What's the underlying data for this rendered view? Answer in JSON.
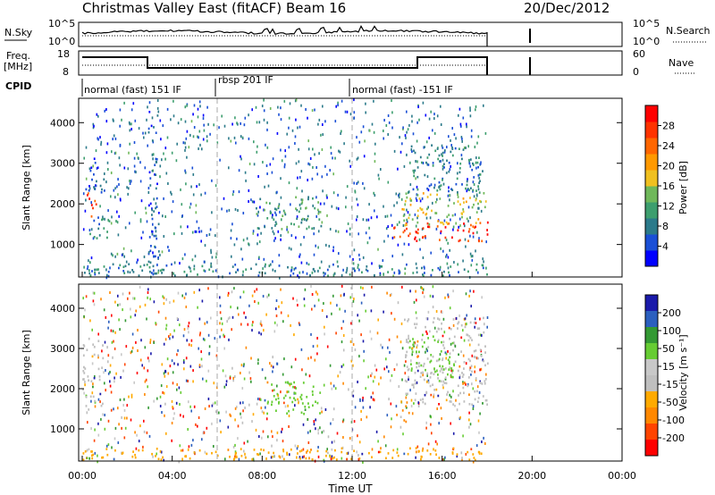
{
  "header": {
    "title": "Christmas Valley East (fitACF)",
    "beam": "Beam 16",
    "date": "20/Dec/2012"
  },
  "strips": {
    "nsky_label": "N.Sky",
    "nsearch_label": "N.Search",
    "nsky_ticks": [
      "10^5",
      "10^0"
    ],
    "nsearch_ticks": [
      "10^5",
      "10^0"
    ],
    "freq_label": [
      "Freq.",
      "[MHz]"
    ],
    "freq_ticks": [
      "18",
      "8"
    ],
    "nave_label": "Nave",
    "nave_ticks": [
      "60",
      "0"
    ],
    "cpid_label": "CPID",
    "cpid_segments": [
      {
        "label": "normal (fast) 151 IF",
        "start_h": 0,
        "end_h": 6
      },
      {
        "label": "rbsp 201 IF",
        "start_h": 6,
        "end_h": 12
      },
      {
        "label": "normal (fast) -151 IF",
        "start_h": 12,
        "end_h": 24
      }
    ]
  },
  "colors": {
    "power": [
      "#0000ff",
      "#1a4fd6",
      "#2b7a8a",
      "#3d9e6e",
      "#6fb85a",
      "#f0c020",
      "#ff9900",
      "#ff6600",
      "#ff3300",
      "#ff0000"
    ],
    "velocity": [
      "#ff0000",
      "#ff4400",
      "#ff8800",
      "#ffaa00",
      "#bfbfbf",
      "#c8c8c8",
      "#66cc33",
      "#339933",
      "#2b5fbf",
      "#1a1aaa"
    ]
  },
  "chart_data": [
    {
      "type": "heatmap",
      "name": "power",
      "ylabel": "Slant Range [km]",
      "xlim": [
        0,
        24
      ],
      "ylim": [
        200,
        4600
      ],
      "yticks": [
        "1000",
        "2000",
        "3000",
        "4000"
      ],
      "ytick_values": [
        1000,
        2000,
        3000,
        4000
      ],
      "colorbar_label": "Power [dB]",
      "colorbar_ticks": [
        "4",
        "8",
        "12",
        "16",
        "20",
        "24",
        "28"
      ],
      "colorbar_tick_values": [
        4,
        8,
        12,
        16,
        20,
        24,
        28
      ],
      "colorbar_range": [
        0,
        32
      ],
      "regions": [
        {
          "t": [
            0.1,
            0.6
          ],
          "r": [
            1700,
            2300
          ],
          "level": 27
        },
        {
          "t": [
            0.3,
            1.2
          ],
          "r": [
            1100,
            1700
          ],
          "level": 9
        },
        {
          "t": [
            0.1,
            1.0
          ],
          "r": [
            2300,
            3200
          ],
          "level": 5
        },
        {
          "t": [
            2.9,
            3.4
          ],
          "r": [
            300,
            4400
          ],
          "level": 6
        },
        {
          "t": [
            7.7,
            10.6
          ],
          "r": [
            1400,
            2200
          ],
          "level": 11
        },
        {
          "t": [
            13.8,
            18.0
          ],
          "r": [
            1100,
            1600
          ],
          "level": 27
        },
        {
          "t": [
            14.2,
            18.0
          ],
          "r": [
            1500,
            2300
          ],
          "level": 17
        },
        {
          "t": [
            14.6,
            17.8
          ],
          "r": [
            2300,
            3500
          ],
          "level": 8
        },
        {
          "t": [
            0.0,
            18.0
          ],
          "r": [
            250,
            550
          ],
          "level": 8
        }
      ]
    },
    {
      "type": "heatmap",
      "name": "velocity",
      "ylabel": "Slant Range [km]",
      "xlabel": "Time UT",
      "xlim": [
        0,
        24
      ],
      "xticks": [
        "00:00",
        "04:00",
        "08:00",
        "12:00",
        "16:00",
        "20:00",
        "00:00"
      ],
      "xtick_values": [
        0,
        4,
        8,
        12,
        16,
        20,
        24
      ],
      "ylim": [
        200,
        4600
      ],
      "yticks": [
        "1000",
        "2000",
        "3000",
        "4000"
      ],
      "ytick_values": [
        1000,
        2000,
        3000,
        4000
      ],
      "colorbar_label": "Velocity [m s⁻¹]",
      "colorbar_ticks": [
        "-200",
        "-100",
        "-50",
        "-15",
        "15",
        "50",
        "100",
        "200"
      ],
      "regions": [
        {
          "t": [
            0.0,
            0.9
          ],
          "r": [
            1500,
            3300
          ],
          "level": "-15..15"
        },
        {
          "t": [
            7.7,
            10.6
          ],
          "r": [
            1400,
            2200
          ],
          "level": "15..50"
        },
        {
          "t": [
            13.9,
            14.5
          ],
          "r": [
            1100,
            1700
          ],
          "level": "-100..-50"
        },
        {
          "t": [
            14.3,
            18.0
          ],
          "r": [
            1600,
            3800
          ],
          "level": "-15..15"
        },
        {
          "t": [
            14.5,
            16.5
          ],
          "r": [
            2300,
            3400
          ],
          "level": "15..50"
        },
        {
          "t": [
            0.0,
            18.0
          ],
          "r": [
            250,
            550
          ],
          "level": "-50..-15"
        }
      ]
    }
  ]
}
